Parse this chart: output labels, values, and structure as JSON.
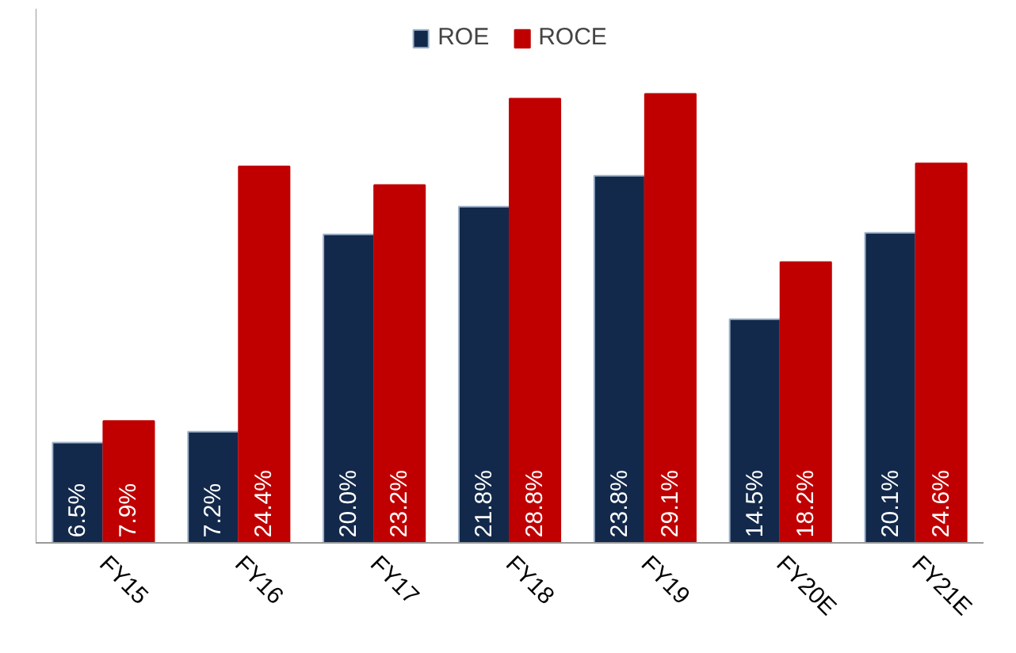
{
  "chart_data": {
    "type": "bar",
    "categories": [
      "FY15",
      "FY16",
      "FY17",
      "FY18",
      "FY19",
      "FY20E",
      "FY21E"
    ],
    "series": [
      {
        "name": "ROE",
        "color": "#13294b",
        "values": [
          6.5,
          7.2,
          20.0,
          21.8,
          23.8,
          14.5,
          20.1
        ],
        "value_labels": [
          "6.5%",
          "7.2%",
          "20.0%",
          "21.8%",
          "23.8%",
          "14.5%",
          "20.1%"
        ]
      },
      {
        "name": "ROCE",
        "color": "#c00000",
        "values": [
          7.9,
          24.4,
          23.2,
          28.8,
          29.1,
          18.2,
          24.6
        ],
        "value_labels": [
          "7.9%",
          "24.4%",
          "23.2%",
          "28.8%",
          "29.1%",
          "18.2%",
          "24.6%"
        ]
      }
    ],
    "legend": "top"
  }
}
